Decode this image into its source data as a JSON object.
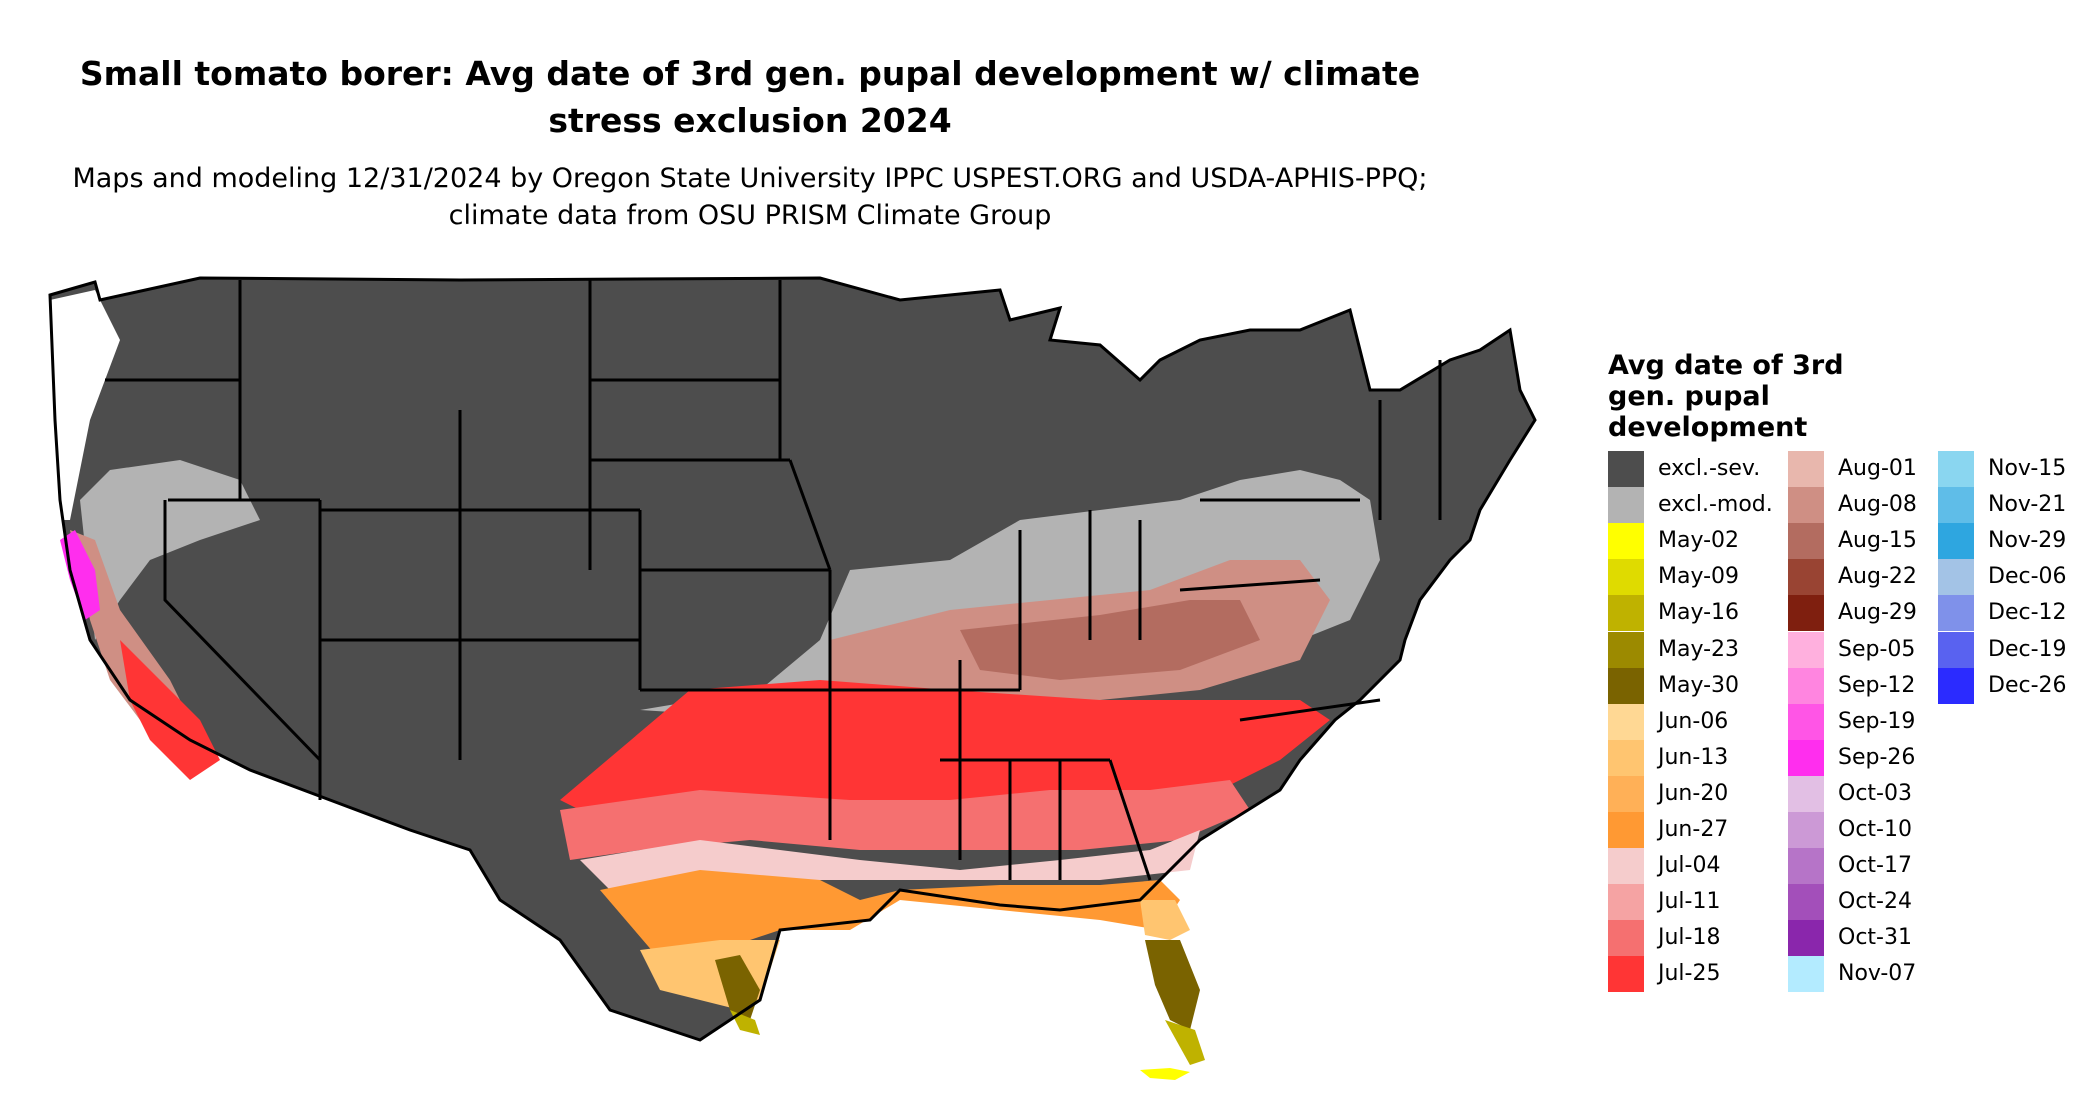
{
  "title": "Small tomato borer: Avg date of 3rd gen. pupal development w/ climate stress exclusion 2024",
  "subtitle": "Maps and modeling 12/31/2024 by Oregon State University IPPC USPEST.ORG and USDA-APHIS-PPQ; climate data from OSU PRISM Climate Group",
  "legend": {
    "title": "Avg date of 3rd gen. pupal development",
    "columns": [
      [
        {
          "label": "excl.-sev.",
          "color": "#4d4d4d"
        },
        {
          "label": "excl.-mod.",
          "color": "#b3b3b3"
        },
        {
          "label": "May-02",
          "color": "#ffff00"
        },
        {
          "label": "May-09",
          "color": "#dfdb00"
        },
        {
          "label": "May-16",
          "color": "#bfb200"
        },
        {
          "label": "May-23",
          "color": "#9c8a00"
        },
        {
          "label": "May-30",
          "color": "#7a6300"
        },
        {
          "label": "Jun-06",
          "color": "#ffd894"
        },
        {
          "label": "Jun-13",
          "color": "#ffc570"
        },
        {
          "label": "Jun-20",
          "color": "#ffb057"
        },
        {
          "label": "Jun-27",
          "color": "#ff9933"
        },
        {
          "label": "Jul-04",
          "color": "#f5cccc"
        },
        {
          "label": "Jul-11",
          "color": "#f5a3a3"
        },
        {
          "label": "Jul-18",
          "color": "#f57070"
        },
        {
          "label": "Jul-25",
          "color": "#ff3535"
        }
      ],
      [
        {
          "label": "Aug-01",
          "color": "#e8b7ad"
        },
        {
          "label": "Aug-08",
          "color": "#cf8f84"
        },
        {
          "label": "Aug-15",
          "color": "#b36c60"
        },
        {
          "label": "Aug-22",
          "color": "#994433"
        },
        {
          "label": "Aug-29",
          "color": "#7f1f0f"
        },
        {
          "label": "Sep-05",
          "color": "#ffb0de"
        },
        {
          "label": "Sep-12",
          "color": "#ff85e0"
        },
        {
          "label": "Sep-19",
          "color": "#ff55e6"
        },
        {
          "label": "Sep-26",
          "color": "#ff2eee"
        },
        {
          "label": "Oct-03",
          "color": "#e2bfe4"
        },
        {
          "label": "Oct-10",
          "color": "#cc99d6"
        },
        {
          "label": "Oct-17",
          "color": "#b674c8"
        },
        {
          "label": "Oct-24",
          "color": "#a34fba"
        },
        {
          "label": "Oct-31",
          "color": "#8a26ac"
        },
        {
          "label": "Nov-07",
          "color": "#b3ebff"
        }
      ],
      [
        {
          "label": "Nov-15",
          "color": "#8ad6f0"
        },
        {
          "label": "Nov-21",
          "color": "#5fbde8"
        },
        {
          "label": "Nov-29",
          "color": "#2ea6e0"
        },
        {
          "label": "Dec-06",
          "color": "#a3c3e6"
        },
        {
          "label": "Dec-12",
          "color": "#7f91ea"
        },
        {
          "label": "Dec-19",
          "color": "#5962f0"
        },
        {
          "label": "Dec-26",
          "color": "#2b2bff"
        }
      ]
    ]
  }
}
